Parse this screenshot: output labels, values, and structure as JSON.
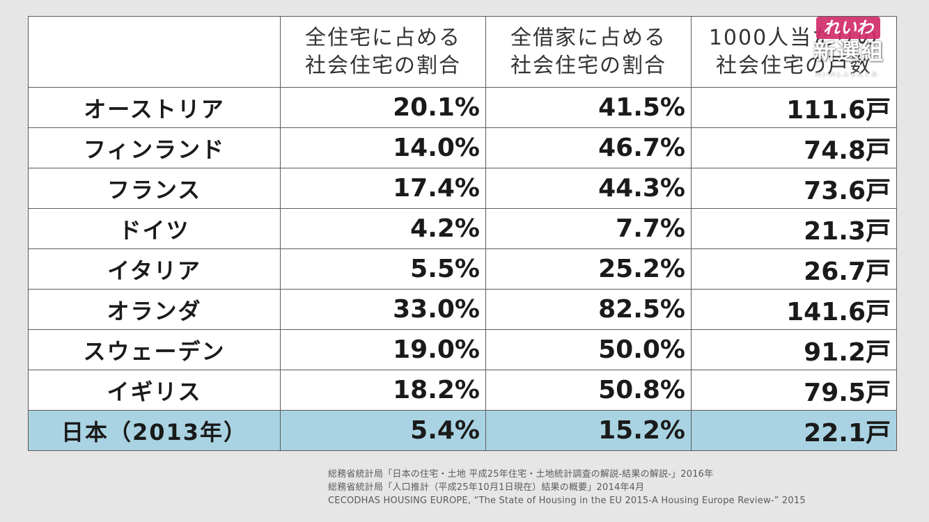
{
  "table": {
    "headers": [
      "",
      [
        "全住宅に占める",
        "社会住宅の割合"
      ],
      [
        "全借家に占める",
        "社会住宅の割合"
      ],
      [
        "1000人当たりの",
        "社会住宅の戸数"
      ]
    ],
    "rows": [
      {
        "country": "オーストリア",
        "share_all": "20.1%",
        "share_rental": "41.5%",
        "per_1000": "111.6戸"
      },
      {
        "country": "フィンランド",
        "share_all": "14.0%",
        "share_rental": "46.7%",
        "per_1000": "74.8戸"
      },
      {
        "country": "フランス",
        "share_all": "17.4%",
        "share_rental": "44.3%",
        "per_1000": "73.6戸"
      },
      {
        "country": "ドイツ",
        "share_all": "4.2%",
        "share_rental": "7.7%",
        "per_1000": "21.3戸"
      },
      {
        "country": "イタリア",
        "share_all": "5.5%",
        "share_rental": "25.2%",
        "per_1000": "26.7戸"
      },
      {
        "country": "オランダ",
        "share_all": "33.0%",
        "share_rental": "82.5%",
        "per_1000": "141.6戸"
      },
      {
        "country": "スウェーデン",
        "share_all": "19.0%",
        "share_rental": "50.0%",
        "per_1000": "91.2戸"
      },
      {
        "country": "イギリス",
        "share_all": "18.2%",
        "share_rental": "50.8%",
        "per_1000": "79.5戸"
      },
      {
        "country": "日本（2013年）",
        "share_all": "5.4%",
        "share_rental": "15.2%",
        "per_1000": "22.1戸"
      }
    ],
    "highlight_color": "#a9d3e2"
  },
  "sources": [
    "総務省統計局「日本の住宅・土地 平成25年住宅・土地統計調査の解説-結果の解説-」2016年",
    "総務省統計局「人口推計（平成25年10月1日現在）結果の概要」2014年4月",
    "CECODHAS HOUSING EUROPE, “The State of Housing in the EU 2015-A Housing Europe Review-” 2015"
  ],
  "logo": {
    "top": "れいわ",
    "main": "新選組",
    "sub": "れいわしんせんぐみ",
    "color": "#d22d6c"
  }
}
